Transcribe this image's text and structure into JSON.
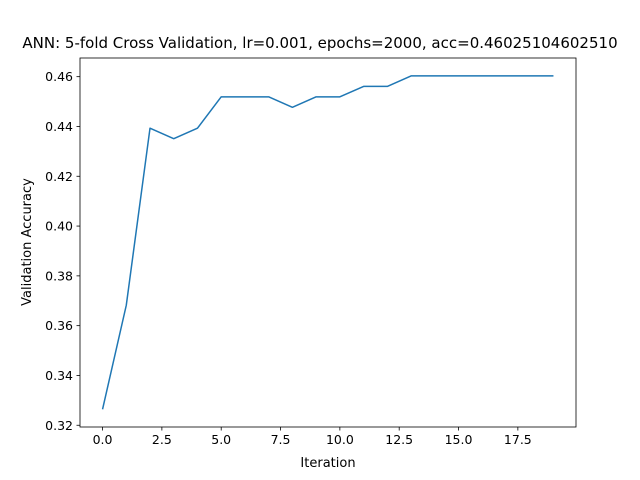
{
  "chart_data": {
    "type": "line",
    "title": "ANN: 5-fold Cross Validation, lr=0.001, epochs=2000, acc=0.46025104602510",
    "xlabel": "Iteration",
    "ylabel": "Validation Accuracy",
    "xlim": [
      -0.95,
      19.95
    ],
    "ylim": [
      0.3193,
      0.4675
    ],
    "x_ticks": [
      0,
      2.5,
      5,
      7.5,
      10,
      12.5,
      15,
      17.5
    ],
    "x_tick_labels": [
      "0.0",
      "2.5",
      "5.0",
      "7.5",
      "10.0",
      "12.5",
      "15.0",
      "17.5"
    ],
    "y_ticks": [
      0.32,
      0.34,
      0.36,
      0.38,
      0.4,
      0.42,
      0.44,
      0.46
    ],
    "y_tick_labels": [
      "0.32",
      "0.34",
      "0.36",
      "0.38",
      "0.40",
      "0.42",
      "0.44",
      "0.46"
    ],
    "grid": false,
    "series_color": "#1f77b4",
    "series": [
      {
        "x": [
          0,
          1,
          2,
          3,
          4,
          5,
          6,
          7,
          8,
          9,
          10,
          11,
          12,
          13,
          14,
          15,
          16,
          17,
          18,
          19
        ],
        "values": [
          0.3264,
          0.3682,
          0.4393,
          0.4351,
          0.4393,
          0.4519,
          0.4519,
          0.4519,
          0.4477,
          0.4519,
          0.4519,
          0.4561,
          0.4561,
          0.4603,
          0.4603,
          0.4603,
          0.4603,
          0.4603,
          0.4603,
          0.4603
        ]
      }
    ]
  }
}
